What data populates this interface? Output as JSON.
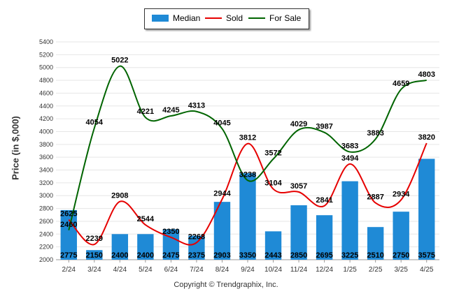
{
  "chart_data": {
    "type": "bar",
    "categories": [
      "2/24",
      "3/24",
      "4/24",
      "5/24",
      "6/24",
      "7/24",
      "8/24",
      "9/24",
      "10/24",
      "11/24",
      "12/24",
      "1/25",
      "2/25",
      "3/25",
      "4/25"
    ],
    "series": [
      {
        "name": "Median",
        "type": "bar",
        "color": "#1f8ad6",
        "values": [
          2775,
          2150,
          2400,
          2400,
          2475,
          2375,
          2903,
          3350,
          2443,
          2850,
          2695,
          3225,
          2510,
          2750,
          3575
        ]
      },
      {
        "name": "Sold",
        "type": "line",
        "color": "#e60000",
        "values": [
          2625,
          2239,
          2908,
          2544,
          2350,
          2268,
          2944,
          3812,
          3104,
          3057,
          2841,
          3494,
          2887,
          2934,
          3820
        ]
      },
      {
        "name": "For Sale",
        "type": "line",
        "color": "#006400",
        "values": [
          2460,
          4054,
          5022,
          4221,
          4245,
          4313,
          4045,
          3238,
          3572,
          4029,
          3987,
          3683,
          3883,
          4659,
          4803
        ]
      }
    ],
    "ylabel": "Price (in $,000)",
    "xlabel": "",
    "ylim": [
      2000,
      5400
    ],
    "yticks": [
      2000,
      2200,
      2400,
      2600,
      2800,
      3000,
      3200,
      3400,
      3600,
      3800,
      4000,
      4200,
      4400,
      4600,
      4800,
      5000,
      5200,
      5400
    ],
    "grid": true,
    "legend_position": "top-center"
  },
  "legend": {
    "median_label": "Median",
    "sold_label": "Sold",
    "forsale_label": "For Sale"
  },
  "footer": {
    "copyright": "Copyright © Trendgraphix, Inc."
  }
}
